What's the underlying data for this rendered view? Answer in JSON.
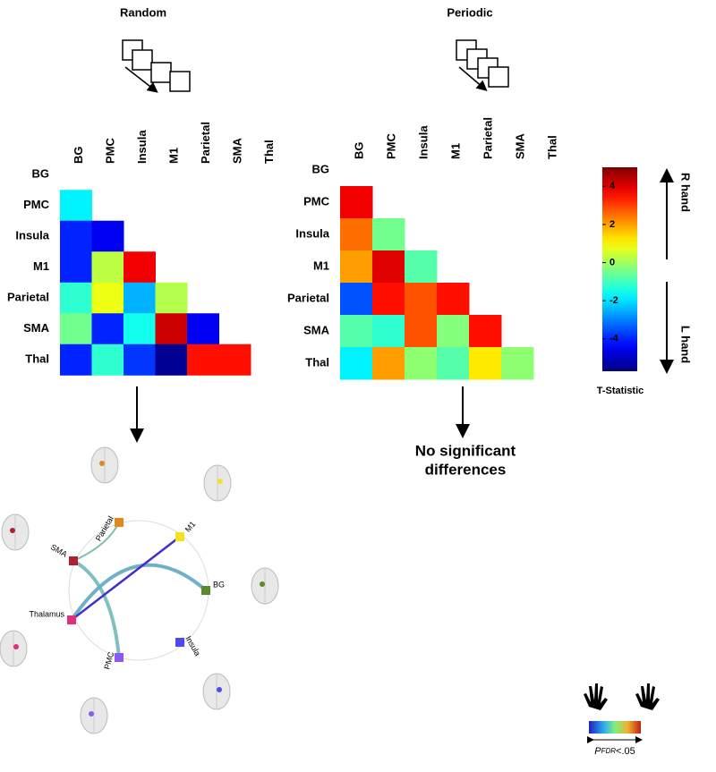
{
  "chart_data": [
    {
      "type": "heatmap",
      "title": "Random",
      "categories": [
        "BG",
        "PMC",
        "Insula",
        "M1",
        "Parietal",
        "SMA",
        "Thal"
      ],
      "values": [
        [
          null,
          null,
          null,
          null,
          null,
          null,
          null
        ],
        [
          -1.8,
          null,
          null,
          null,
          null,
          null,
          null
        ],
        [
          -4,
          -4.5,
          null,
          null,
          null,
          null,
          null
        ],
        [
          -4,
          0.3,
          3.8,
          null,
          null,
          null,
          null
        ],
        [
          -1.2,
          0.8,
          -2.5,
          0.2,
          null,
          null,
          null
        ],
        [
          -0.5,
          -4,
          -1.5,
          4.2,
          -4.5,
          null,
          null
        ],
        [
          -4,
          -1.2,
          -3.8,
          -5.5,
          3.5,
          3.5,
          null
        ]
      ]
    },
    {
      "type": "heatmap",
      "title": "Periodic",
      "categories": [
        "BG",
        "PMC",
        "Insula",
        "M1",
        "Parietal",
        "SMA",
        "Thal"
      ],
      "values": [
        [
          null,
          null,
          null,
          null,
          null,
          null,
          null
        ],
        [
          3.8,
          null,
          null,
          null,
          null,
          null,
          null
        ],
        [
          2.5,
          -0.5,
          null,
          null,
          null,
          null,
          null
        ],
        [
          2,
          4,
          -0.8,
          null,
          null,
          null,
          null
        ],
        [
          -3.5,
          3.5,
          2.8,
          3.5,
          null,
          null,
          null
        ],
        [
          -0.8,
          -1.2,
          2.8,
          -0.3,
          3.5,
          null,
          null
        ],
        [
          -1.8,
          2,
          -0.2,
          -0.8,
          1.2,
          -0.2,
          null
        ]
      ]
    }
  ],
  "colorbar": {
    "label": "T-Statistic",
    "colormap": "jet",
    "lim": [
      -5.7,
      5
    ],
    "ticks": [
      4,
      2,
      0,
      -2,
      -4
    ],
    "upper_label": "R hand",
    "lower_label": "L hand"
  },
  "result_text": [
    "No significant",
    "differences"
  ],
  "connectome": {
    "nodes": [
      {
        "label": "Parietal",
        "color": "#e08a1e"
      },
      {
        "label": "M1",
        "color": "#f2e31c"
      },
      {
        "label": "BG",
        "color": "#5a8a2a"
      },
      {
        "label": "Insula",
        "color": "#4a4af0"
      },
      {
        "label": "PMC",
        "color": "#8a5af0"
      },
      {
        "label": "Thalamus",
        "color": "#e0307a"
      },
      {
        "label": "SMA",
        "color": "#b02030"
      }
    ]
  },
  "significance": {
    "symbol": "P",
    "subscript": "FDR",
    "condition": "<.05"
  }
}
